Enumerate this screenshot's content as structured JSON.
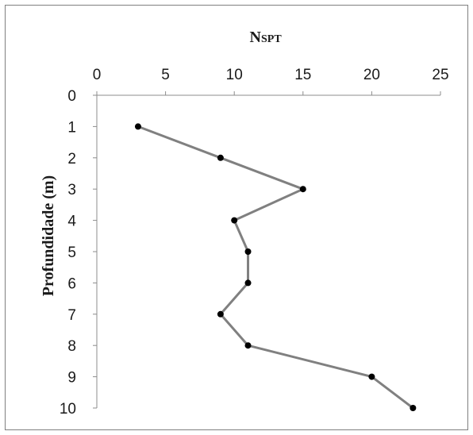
{
  "chart_data": {
    "type": "line",
    "title_main": "N",
    "title_sub": "SPT",
    "xlabel": "",
    "ylabel": "Profundidade (m)",
    "x_axis_position": "top",
    "y_axis_inverted": true,
    "xlim": [
      0,
      25
    ],
    "ylim": [
      0,
      10
    ],
    "x_ticks": [
      "0",
      "5",
      "10",
      "15",
      "20",
      "25"
    ],
    "y_ticks": [
      "0",
      "1",
      "2",
      "3",
      "4",
      "5",
      "6",
      "7",
      "8",
      "9",
      "10"
    ],
    "grid": false,
    "legend": "none",
    "series": [
      {
        "x": [
          3,
          9,
          15,
          10,
          11,
          11,
          9,
          11,
          20,
          23
        ],
        "y": [
          1,
          2,
          3,
          4,
          5,
          6,
          7,
          8,
          9,
          10
        ]
      }
    ],
    "line_color": "#808080",
    "marker_color": "#000000"
  }
}
